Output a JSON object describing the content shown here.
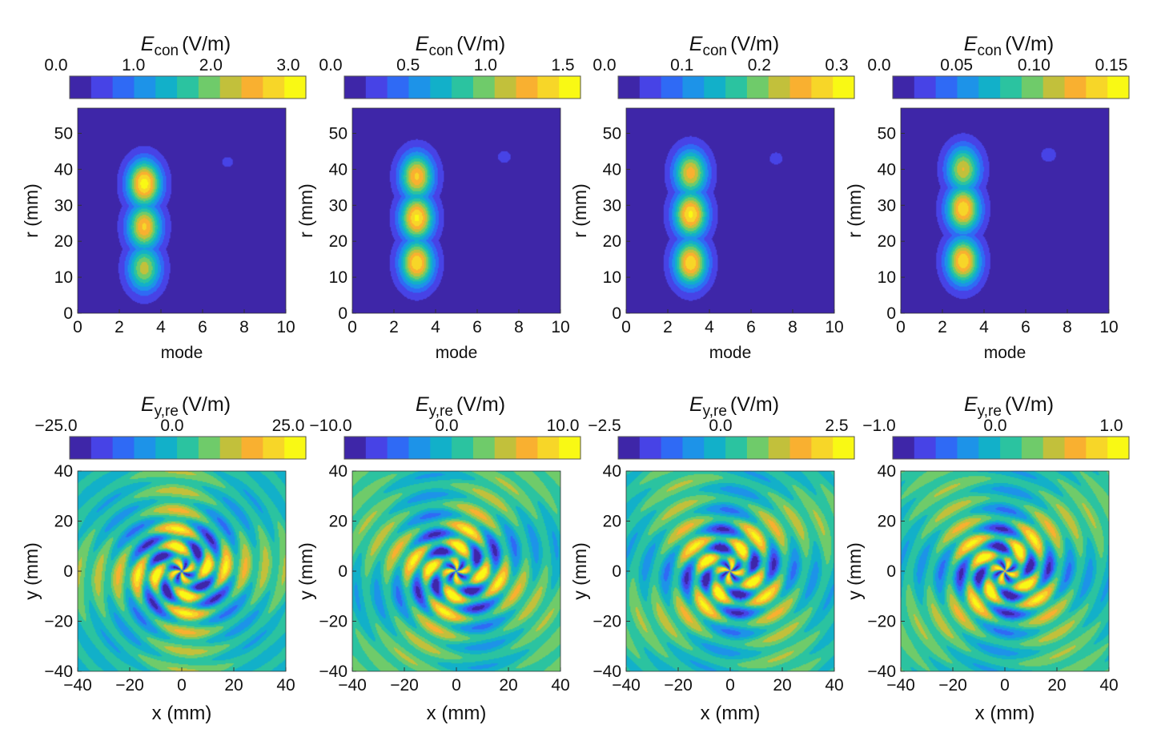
{
  "colormap": [
    "#3e26a8",
    "#4743e6",
    "#2f6af5",
    "#1d93e8",
    "#12b0c9",
    "#2bc3a0",
    "#6fcb6a",
    "#c2c03b",
    "#f9b030",
    "#f7d628",
    "#f9f914"
  ],
  "chart_data": [
    {
      "type": "heatmap",
      "title": "E_con (V/m)",
      "title_main": "E",
      "title_sub": "con",
      "title_unit": "(V/m)",
      "colorbar_ticks": [
        "0.0",
        "1.0",
        "2.0",
        "3.0"
      ],
      "colorbar_range": [
        0,
        3.0
      ],
      "xlabel": "mode",
      "ylabel": "r (mm)",
      "xlim": [
        0,
        10
      ],
      "ylim": [
        0,
        57
      ],
      "xticks": [
        "0",
        "2",
        "4",
        "6",
        "8",
        "10"
      ],
      "yticks": [
        "0",
        "10",
        "20",
        "30",
        "40",
        "50"
      ],
      "lobes": [
        {
          "x": 3.2,
          "y": 36,
          "value": 3.0
        },
        {
          "x": 3.2,
          "y": 24,
          "value": 2.6
        },
        {
          "x": 3.2,
          "y": 12.5,
          "value": 2.1
        }
      ],
      "spots": [
        {
          "x": 7.2,
          "y": 42,
          "value": 0.25
        }
      ]
    },
    {
      "type": "heatmap",
      "title": "E_con (V/m)",
      "title_main": "E",
      "title_sub": "con",
      "title_unit": "(V/m)",
      "colorbar_ticks": [
        "0.0",
        "0.5",
        "1.0",
        "1.5"
      ],
      "colorbar_range": [
        0,
        1.5
      ],
      "xlabel": "mode",
      "ylabel": "r (mm)",
      "xlim": [
        0,
        10
      ],
      "ylim": [
        0,
        57
      ],
      "xticks": [
        "0",
        "2",
        "4",
        "6",
        "8",
        "10"
      ],
      "yticks": [
        "0",
        "10",
        "20",
        "30",
        "40",
        "50"
      ],
      "lobes": [
        {
          "x": 3.1,
          "y": 38,
          "value": 1.3
        },
        {
          "x": 3.1,
          "y": 26.5,
          "value": 1.45
        },
        {
          "x": 3.1,
          "y": 14,
          "value": 1.4
        }
      ],
      "spots": [
        {
          "x": 7.3,
          "y": 43.5,
          "value": 0.15
        }
      ]
    },
    {
      "type": "heatmap",
      "title": "E_con (V/m)",
      "title_main": "E",
      "title_sub": "con",
      "title_unit": "(V/m)",
      "colorbar_ticks": [
        "0.0",
        "0.1",
        "0.2",
        "0.3"
      ],
      "colorbar_range": [
        0,
        0.3
      ],
      "xlabel": "mode",
      "ylabel": "r (mm)",
      "xlim": [
        0,
        10
      ],
      "ylim": [
        0,
        57
      ],
      "xticks": [
        "0",
        "2",
        "4",
        "6",
        "8",
        "10"
      ],
      "yticks": [
        "0",
        "10",
        "20",
        "30",
        "40",
        "50"
      ],
      "lobes": [
        {
          "x": 3.1,
          "y": 39,
          "value": 0.24
        },
        {
          "x": 3.1,
          "y": 27.5,
          "value": 0.29
        },
        {
          "x": 3.1,
          "y": 14,
          "value": 0.28
        }
      ],
      "spots": [
        {
          "x": 7.2,
          "y": 43,
          "value": 0.03
        }
      ]
    },
    {
      "type": "heatmap",
      "title": "E_con (V/m)",
      "title_main": "E",
      "title_sub": "con",
      "title_unit": "(V/m)",
      "colorbar_ticks": [
        "0.0",
        "0.05",
        "0.10",
        "0.15"
      ],
      "colorbar_range": [
        0,
        0.16
      ],
      "xlabel": "mode",
      "ylabel": "r (mm)",
      "xlim": [
        0,
        10
      ],
      "ylim": [
        0,
        57
      ],
      "xticks": [
        "0",
        "2",
        "4",
        "6",
        "8",
        "10"
      ],
      "yticks": [
        "0",
        "10",
        "20",
        "30",
        "40",
        "50"
      ],
      "lobes": [
        {
          "x": 3.0,
          "y": 40,
          "value": 0.12
        },
        {
          "x": 3.0,
          "y": 29,
          "value": 0.15
        },
        {
          "x": 3.0,
          "y": 14.5,
          "value": 0.15
        }
      ],
      "spots": [
        {
          "x": 7.1,
          "y": 44,
          "value": 0.02
        }
      ]
    },
    {
      "type": "heatmap",
      "title": "E_y,re (V/m)",
      "title_main": "E",
      "title_sub": "y,re",
      "title_unit": "(V/m)",
      "colorbar_ticks": [
        "−25.0",
        "0.0",
        "25.0"
      ],
      "colorbar_range": [
        -25,
        25
      ],
      "xlabel": "x (mm)",
      "ylabel": "y (mm)",
      "xlim": [
        -40,
        40
      ],
      "ylim": [
        -40,
        40
      ],
      "xticks": [
        "−40",
        "−20",
        "0",
        "20",
        "40"
      ],
      "yticks": [
        "−40",
        "−20",
        "0",
        "20",
        "40"
      ],
      "field": {
        "arms": 4,
        "twist": 0.065,
        "rotation": 0.2,
        "max_value": 25
      }
    },
    {
      "type": "heatmap",
      "title": "E_y,re (V/m)",
      "title_main": "E",
      "title_sub": "y,re",
      "title_unit": "(V/m)",
      "colorbar_ticks": [
        "−10.0",
        "0.0",
        "10.0"
      ],
      "colorbar_range": [
        -10,
        10
      ],
      "xlabel": "x (mm)",
      "ylabel": "y (mm)",
      "xticks": [
        "−40",
        "−20",
        "0",
        "20",
        "40"
      ],
      "yticks": [
        "−40",
        "−20",
        "0",
        "20",
        "40"
      ],
      "xlim": [
        -40,
        40
      ],
      "ylim": [
        -40,
        40
      ],
      "field": {
        "arms": 4,
        "twist": 0.06,
        "rotation": 1.1,
        "max_value": 10
      }
    },
    {
      "type": "heatmap",
      "title": "E_y,re (V/m)",
      "title_main": "E",
      "title_sub": "y,re",
      "title_unit": "(V/m)",
      "colorbar_ticks": [
        "−2.5",
        "0.0",
        "2.5"
      ],
      "colorbar_range": [
        -2.5,
        2.5
      ],
      "xlabel": "x (mm)",
      "ylabel": "y (mm)",
      "xticks": [
        "−40",
        "−20",
        "0",
        "20",
        "40"
      ],
      "yticks": [
        "−40",
        "−20",
        "0",
        "20",
        "40"
      ],
      "xlim": [
        -40,
        40
      ],
      "ylim": [
        -40,
        40
      ],
      "field": {
        "arms": 4,
        "twist": 0.055,
        "rotation": 2.0,
        "max_value": 2.5
      }
    },
    {
      "type": "heatmap",
      "title": "E_y,re (V/m)",
      "title_main": "E",
      "title_sub": "y,re",
      "title_unit": "(V/m)",
      "colorbar_ticks": [
        "−1.0",
        "0.0",
        "1.0"
      ],
      "colorbar_range": [
        -1,
        1
      ],
      "xlabel": "x (mm)",
      "ylabel": "y (mm)",
      "xticks": [
        "−40",
        "−20",
        "0",
        "20",
        "40"
      ],
      "yticks": [
        "−40",
        "−20",
        "0",
        "20",
        "40"
      ],
      "xlim": [
        -40,
        40
      ],
      "ylim": [
        -40,
        40
      ],
      "field": {
        "arms": 4,
        "twist": 0.06,
        "rotation": 2.9,
        "max_value": 1
      }
    }
  ]
}
